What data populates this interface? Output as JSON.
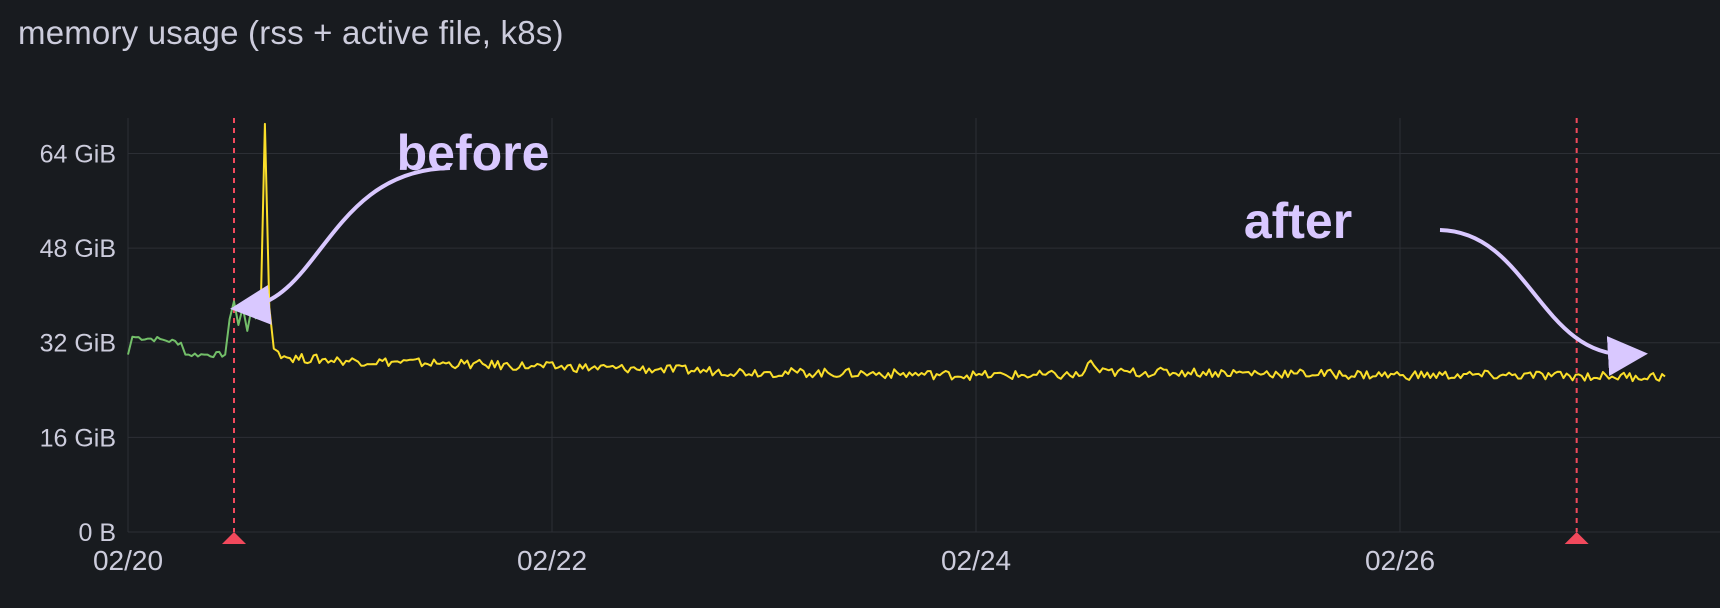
{
  "panel": {
    "title": "memory usage (rss + active file, k8s)"
  },
  "colors": {
    "background": "#181b1f",
    "grid": "#2c2f35",
    "text": "#ccccdc",
    "series_before": "#73bf69",
    "series_after": "#fade2a",
    "annotation_line": "#f2495c",
    "annotation_text": "#d9c8ff"
  },
  "chart_data": {
    "type": "line",
    "title": "memory usage (rss + active file, k8s)",
    "xlabel": "",
    "ylabel": "",
    "x_unit": "days (MM/DD)",
    "xlim": [
      "02/20 00:00",
      "02/27 06:00"
    ],
    "ylim_gib": [
      0,
      70
    ],
    "yticks": [
      {
        "value": 0,
        "label": "0 B"
      },
      {
        "value": 16,
        "label": "16 GiB"
      },
      {
        "value": 32,
        "label": "32 GiB"
      },
      {
        "value": 48,
        "label": "48 GiB"
      },
      {
        "value": 64,
        "label": "64 GiB"
      }
    ],
    "xticks": [
      {
        "value": "02/20",
        "label": "02/20"
      },
      {
        "value": "02/22",
        "label": "02/22"
      },
      {
        "value": "02/24",
        "label": "02/24"
      },
      {
        "value": "02/26",
        "label": "02/26"
      }
    ],
    "grid": true,
    "legend": "none",
    "series": [
      {
        "color": "green",
        "x": [
          "02/20 00:00",
          "02/20 00:30",
          "02/20 04:00",
          "02/20 06:00",
          "02/20 06:30",
          "02/20 09:00",
          "02/20 11:00",
          "02/20 11:30",
          "02/20 12:00",
          "02/20 12:30",
          "02/20 13:00",
          "02/20 13:30",
          "02/20 14:00",
          "02/20 14:30"
        ],
        "values": [
          30,
          33,
          32.5,
          32,
          30,
          30,
          30,
          36,
          39,
          35,
          38,
          34,
          38,
          36
        ]
      },
      {
        "color": "yellow",
        "x": [
          "02/20 15:00",
          "02/20 15:30",
          "02/20 16:00",
          "02/20 16:30",
          "02/20 17:00",
          "02/20 18:00",
          "02/21 00:00",
          "02/21 12:00",
          "02/21 22:00",
          "02/22 12:00",
          "02/23 00:00",
          "02/23 12:00",
          "02/24 00:00",
          "02/24 12:00",
          "02/24 13:00",
          "02/24 14:00",
          "02/25 00:00",
          "02/25 12:00",
          "02/26 00:00",
          "02/26 12:00",
          "02/27 00:00",
          "02/27 06:00"
        ],
        "values": [
          36,
          69,
          38,
          31,
          30.5,
          29.5,
          29,
          28.5,
          28,
          27.5,
          27,
          26.8,
          26.5,
          26.5,
          29,
          27,
          27,
          26.8,
          26.5,
          26.5,
          26.3,
          26.3
        ]
      }
    ],
    "annotations": [
      {
        "time": "02/20 12:00",
        "label": "before"
      },
      {
        "time": "02/26 20:00",
        "label": "after"
      }
    ]
  }
}
